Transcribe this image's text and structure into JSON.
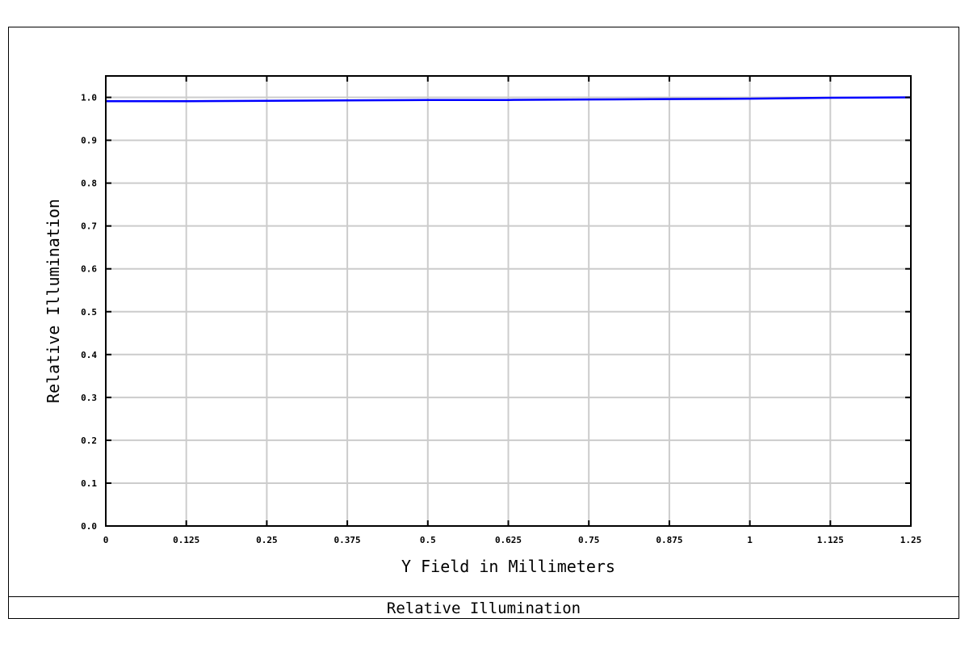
{
  "footer": {
    "title": "Relative Illumination"
  },
  "chart_data": {
    "type": "line",
    "title": "Relative Illumination",
    "xlabel": "Y Field in Millimeters",
    "ylabel": "Relative Illumination",
    "xlim": [
      0,
      1.25
    ],
    "ylim": [
      0,
      1.05
    ],
    "grid": true,
    "x_ticks": [
      "0",
      "0.125",
      "0.25",
      "0.375",
      "0.5",
      "0.625",
      "0.75",
      "0.875",
      "1",
      "1.125",
      "1.25"
    ],
    "y_ticks": [
      "0.0",
      "0.1",
      "0.2",
      "0.3",
      "0.4",
      "0.5",
      "0.6",
      "0.7",
      "0.8",
      "0.9",
      "1.0"
    ],
    "series": [
      {
        "color": "#0000ff",
        "x": [
          0,
          0.125,
          0.25,
          0.375,
          0.5,
          0.625,
          0.75,
          0.875,
          1.0,
          1.125,
          1.25
        ],
        "y": [
          0.991,
          0.991,
          0.992,
          0.993,
          0.994,
          0.994,
          0.995,
          0.996,
          0.997,
          0.999,
          1.0
        ]
      }
    ],
    "colors": {
      "grid": "#cccccc",
      "axes": "#000000"
    }
  }
}
